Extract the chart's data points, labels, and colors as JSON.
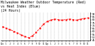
{
  "title": "Milwaukee Weather Outdoor Temperature (Red)\nvs Heat Index (Blue)\n(24 Hours)",
  "title_fontsize": 3.5,
  "hours": [
    0,
    1,
    2,
    3,
    4,
    5,
    6,
    7,
    8,
    9,
    10,
    11,
    12,
    13,
    14,
    15,
    16,
    17,
    18,
    19,
    20,
    21,
    22,
    23
  ],
  "temp": [
    68,
    65,
    63,
    60,
    57,
    54,
    51,
    49,
    52,
    58,
    65,
    72,
    77,
    79,
    81,
    80,
    79,
    80,
    81,
    80,
    79,
    81,
    82,
    83
  ],
  "ylim": [
    44,
    92
  ],
  "yticks": [
    45,
    50,
    55,
    60,
    65,
    70,
    75,
    80,
    85,
    90
  ],
  "temp_color": "#ff0000",
  "grid_color": "#999999",
  "bg_color": "#ffffff",
  "line_width": 0.6,
  "marker_size": 1.2,
  "xtick_labels": [
    "12a",
    "1",
    "2",
    "3",
    "4",
    "5",
    "6",
    "7",
    "8",
    "9",
    "10",
    "11",
    "12p",
    "1",
    "2",
    "3",
    "4",
    "5",
    "6",
    "7",
    "8",
    "9",
    "10",
    "11"
  ]
}
